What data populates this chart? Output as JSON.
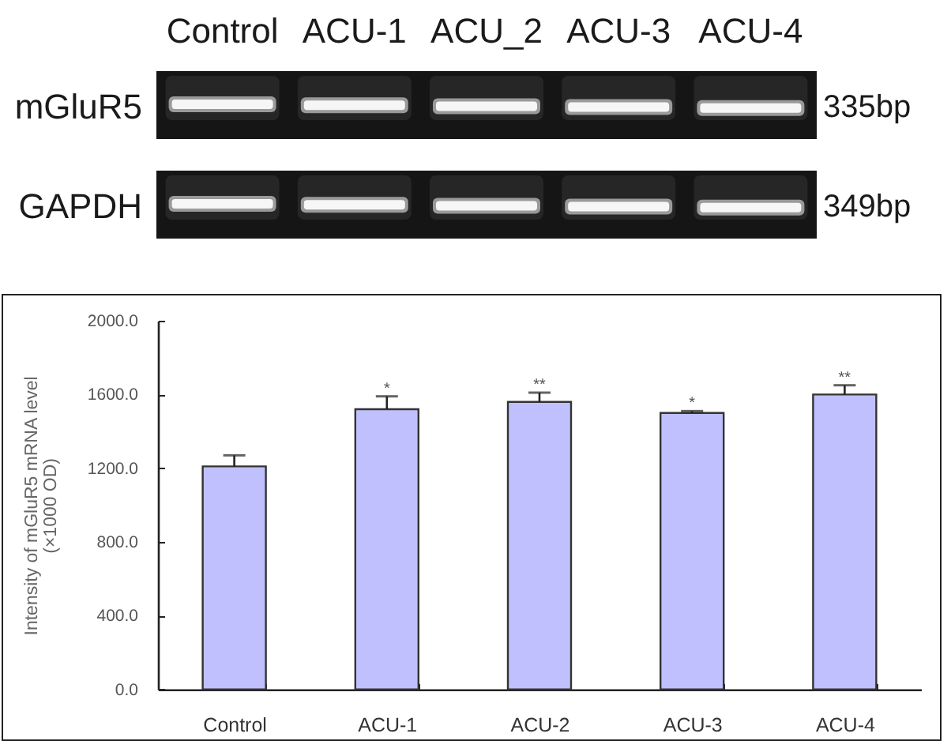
{
  "chart_data": {
    "type": "bar",
    "ylabel": "Intensity of mGluR5 mRNA level\n(×1000 OD)",
    "categories": [
      "Control",
      "ACU-1",
      "ACU-2",
      "ACU-3",
      "ACU-4"
    ],
    "values": [
      1210,
      1520,
      1560,
      1500,
      1600
    ],
    "errors": [
      [
        1210,
        1270
      ],
      [
        1520,
        1590
      ],
      [
        1560,
        1610
      ],
      [
        1500,
        1510
      ],
      [
        1600,
        1650
      ]
    ],
    "color": "#c0c0ff",
    "ylim": [
      0,
      2000
    ],
    "yticks": [
      {
        "value": 0,
        "label": "0.0"
      },
      {
        "value": 400,
        "label": "400.0"
      },
      {
        "value": 800,
        "label": "800.0"
      },
      {
        "value": 1200,
        "label": "1200.0"
      },
      {
        "value": 1600,
        "label": "1600.0"
      },
      {
        "value": 2000,
        "label": "2000.0"
      }
    ],
    "annotations": [
      "Control",
      "ACU-1",
      "ACU_2",
      "ACU-3",
      "ACU-4",
      "mGluR5",
      "GAPDH",
      "335bp",
      "349bp",
      {
        "text": "*",
        "x": "ACU-1"
      },
      {
        "text": "**",
        "x": "ACU-2"
      },
      {
        "text": "*",
        "x": "ACU-3"
      },
      {
        "text": "**",
        "x": "ACU-4"
      }
    ]
  }
}
